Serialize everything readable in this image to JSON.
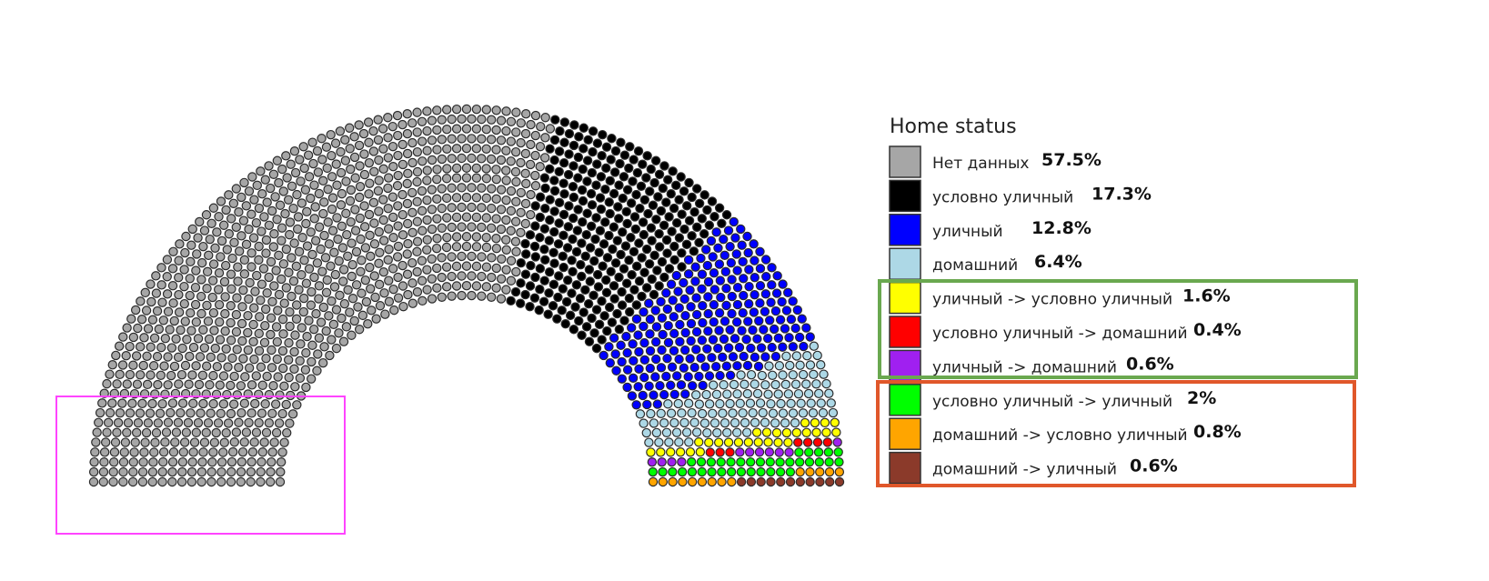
{
  "chart_data": {
    "type": "parliament",
    "legend": {
      "title": "Home status",
      "placement": "right"
    },
    "series": [
      {
        "name": "Нет данных",
        "value_label": "57.5%",
        "value": 57.5,
        "color": "#a6a6a6"
      },
      {
        "name": "условно уличный",
        "value_label": "17.3%",
        "value": 17.3,
        "color": "#000000"
      },
      {
        "name": "уличный",
        "value_label": "12.8%",
        "value": 12.8,
        "color": "#0000ff"
      },
      {
        "name": "домашний",
        "value_label": "6.4%",
        "value": 6.4,
        "color": "#add8e6"
      },
      {
        "name": "уличный -> условно уличный",
        "value_label": "1.6%",
        "value": 1.6,
        "color": "#ffff00"
      },
      {
        "name": "условно уличный -> домашний",
        "value_label": "0.4%",
        "value": 0.4,
        "color": "#ff0000"
      },
      {
        "name": "уличный -> домашний",
        "value_label": "0.6%",
        "value": 0.6,
        "color": "#a020f0"
      },
      {
        "name": "условно уличный -> уличный",
        "value_label": "2%",
        "value": 2,
        "color": "#00ff00"
      },
      {
        "name": "домашний -> условно уличный",
        "value_label": "0.8%",
        "value": 0.8,
        "color": "#ffa500"
      },
      {
        "name": "домашний -> уличный",
        "value_label": "0.6%",
        "value": 0.6,
        "color": "#8b3a2a"
      }
    ],
    "annotations": [
      {
        "type": "box",
        "color": "#6aa84f",
        "encloses": [
          "уличный -> условно уличный",
          "условно уличный -> домашний",
          "уличный -> домашний"
        ]
      },
      {
        "type": "box",
        "color": "#e0572a",
        "encloses": [
          "условно уличный -> уличный",
          "домашний -> условно уличный",
          "домашний -> уличный"
        ]
      },
      {
        "type": "box",
        "color": "#ff44ff",
        "encloses": "lower-left end of the arc"
      }
    ]
  }
}
